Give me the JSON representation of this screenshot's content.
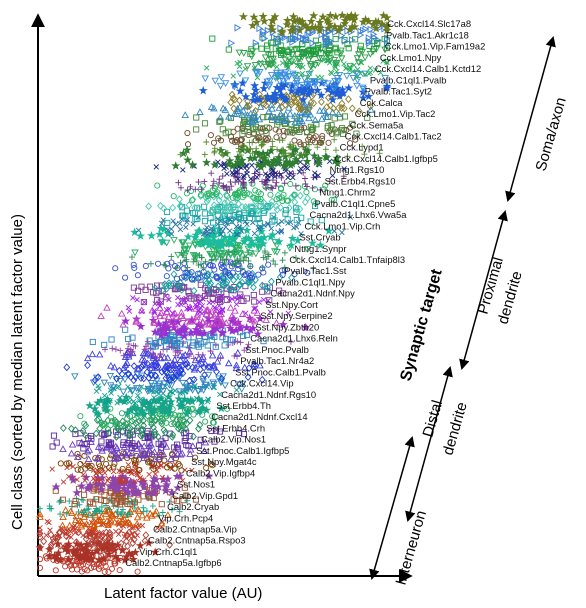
{
  "chart_data": {
    "type": "scatter",
    "xlabel": "Latent factor value (AU)",
    "ylabel": "Cell class (sorted by median latent factor value)",
    "y_order": "bottom-to-top",
    "grid": false,
    "legend": "none",
    "classes": [
      {
        "name": "Calb2.Cntnap5a.Igfbp6",
        "median": 0.08,
        "spread": 0.05,
        "color": "#c0392b",
        "marker": "circle"
      },
      {
        "name": "Vip.Crh.C1ql1",
        "median": 0.1,
        "spread": 0.055,
        "color": "#a93226",
        "marker": "star"
      },
      {
        "name": "Calb2.Cntnap5a.Rspo3",
        "median": 0.11,
        "spread": 0.06,
        "color": "#b03a2e",
        "marker": "diamond"
      },
      {
        "name": "Calb2.Cntnap5a.Vip",
        "median": 0.12,
        "spread": 0.06,
        "color": "#c0392b",
        "marker": "x"
      },
      {
        "name": "Vip.Crh.Pcp4",
        "median": 0.13,
        "spread": 0.06,
        "color": "#d35400",
        "marker": "triangle-up"
      },
      {
        "name": "Calb2.Cryab",
        "median": 0.14,
        "spread": 0.065,
        "color": "#16a085",
        "marker": "plus"
      },
      {
        "name": "Calb2.Vip.Gpd1",
        "median": 0.15,
        "spread": 0.065,
        "color": "#a0522d",
        "marker": "square"
      },
      {
        "name": "Sst.Nos1",
        "median": 0.16,
        "spread": 0.065,
        "color": "#8e44ad",
        "marker": "star"
      },
      {
        "name": "Calb2.Vip.Igfbp4",
        "median": 0.17,
        "spread": 0.07,
        "color": "#c0392b",
        "marker": "x"
      },
      {
        "name": "Sst.Npy.Mgat4c",
        "median": 0.18,
        "spread": 0.07,
        "color": "#7b3f00",
        "marker": "circle"
      },
      {
        "name": "Sst.Pnoc.Calb1.Igfbp5",
        "median": 0.19,
        "spread": 0.07,
        "color": "#6c3fc4",
        "marker": "triangle-up"
      },
      {
        "name": "Calb2.Vip.Nos1",
        "median": 0.2,
        "spread": 0.07,
        "color": "#5b2ca0",
        "marker": "square"
      },
      {
        "name": "Sst.Erbb4.Crh",
        "median": 0.21,
        "spread": 0.07,
        "color": "#1f8a5b",
        "marker": "diamond"
      },
      {
        "name": "Cacna2d1.Ndnf.Cxcl14",
        "median": 0.22,
        "spread": 0.07,
        "color": "#27ae60",
        "marker": "circle"
      },
      {
        "name": "Sst.Erbb4.Th",
        "median": 0.23,
        "spread": 0.07,
        "color": "#17a589",
        "marker": "star"
      },
      {
        "name": "Cacna2d1.Ndnf.Rgs10",
        "median": 0.24,
        "spread": 0.07,
        "color": "#0e9f8e",
        "marker": "x"
      },
      {
        "name": "Cck.Cxcl14.Vip",
        "median": 0.25,
        "spread": 0.075,
        "color": "#2e86c1",
        "marker": "triangle-down"
      },
      {
        "name": "Sst.Pnoc.Calb1.Pvalb",
        "median": 0.26,
        "spread": 0.075,
        "color": "#1f3bd6",
        "marker": "diamond"
      },
      {
        "name": "Pvalb.Tac1.Nr4a2",
        "median": 0.27,
        "spread": 0.075,
        "color": "#3d3de0",
        "marker": "triangle-up"
      },
      {
        "name": "Sst.Pnoc.Pvalb",
        "median": 0.28,
        "spread": 0.075,
        "color": "#8e44ad",
        "marker": "plus"
      },
      {
        "name": "Cacna2d1.Lhx6.Reln",
        "median": 0.29,
        "spread": 0.075,
        "color": "#2e86c1",
        "marker": "square"
      },
      {
        "name": "Sst.Npy.Zbtb20",
        "median": 0.3,
        "spread": 0.075,
        "color": "#9b30d0",
        "marker": "star"
      },
      {
        "name": "Sst.Npy.Serpine2",
        "median": 0.31,
        "spread": 0.075,
        "color": "#c040c0",
        "marker": "triangle-up"
      },
      {
        "name": "Sst.Npy.Cort",
        "median": 0.32,
        "spread": 0.075,
        "color": "#a020f0",
        "marker": "x"
      },
      {
        "name": "Cacna2d1.Ndnf.Npy",
        "median": 0.33,
        "spread": 0.075,
        "color": "#7d3c98",
        "marker": "square"
      },
      {
        "name": "Pvalb.C1ql1.Npy",
        "median": 0.34,
        "spread": 0.075,
        "color": "#16a0a0",
        "marker": "diamond"
      },
      {
        "name": "Pvalb.Tac1.Sst",
        "median": 0.35,
        "spread": 0.08,
        "color": "#3050d0",
        "marker": "circle"
      },
      {
        "name": "Cck.Cxcl14.Calb1.Tnfaip8l3",
        "median": 0.36,
        "spread": 0.08,
        "color": "#2e8b57",
        "marker": "plus"
      },
      {
        "name": "Ntng1.Synpr",
        "median": 0.37,
        "spread": 0.08,
        "color": "#27ae60",
        "marker": "triangle-down"
      },
      {
        "name": "Sst.Cryab",
        "median": 0.38,
        "spread": 0.08,
        "color": "#1abc9c",
        "marker": "star"
      },
      {
        "name": "Cck.Lmo1.Vip.Crh",
        "median": 0.39,
        "spread": 0.08,
        "color": "#2471a3",
        "marker": "x"
      },
      {
        "name": "Cacna2d1.Lhx6.Vwa5a",
        "median": 0.4,
        "spread": 0.08,
        "color": "#17a5a5",
        "marker": "square"
      },
      {
        "name": "Pvalb.C1ql1.Cpne5",
        "median": 0.41,
        "spread": 0.08,
        "color": "#48c9b0",
        "marker": "diamond"
      },
      {
        "name": "Ntng1.Chrm2",
        "median": 0.42,
        "spread": 0.08,
        "color": "#28b463",
        "marker": "circle"
      },
      {
        "name": "Sst.Erbb4.Rgs10",
        "median": 0.43,
        "spread": 0.08,
        "color": "#6c3483",
        "marker": "plus"
      },
      {
        "name": "Ntng1.Rgs10",
        "median": 0.44,
        "spread": 0.08,
        "color": "#1a237e",
        "marker": "x"
      },
      {
        "name": "Cck.Cxcl14.Calb1.Igfbp5",
        "median": 0.45,
        "spread": 0.08,
        "color": "#2e7d32",
        "marker": "star"
      },
      {
        "name": "Cck.Lypd1",
        "median": 0.46,
        "spread": 0.08,
        "color": "#558b2f",
        "marker": "plus"
      },
      {
        "name": "Cck.Cxcl14.Calb1.Tac2",
        "median": 0.47,
        "spread": 0.08,
        "color": "#6d4c2f",
        "marker": "circle"
      },
      {
        "name": "Cck.Sema5a",
        "median": 0.48,
        "spread": 0.08,
        "color": "#4a8a3a",
        "marker": "square"
      },
      {
        "name": "Cck.Lmo1.Vip.Tac2",
        "median": 0.49,
        "spread": 0.08,
        "color": "#2e86c1",
        "marker": "triangle-up"
      },
      {
        "name": "Cck.Calca",
        "median": 0.5,
        "spread": 0.08,
        "color": "#8b7d2a",
        "marker": "diamond"
      },
      {
        "name": "Pvalb.Tac1.Syt2",
        "median": 0.51,
        "spread": 0.08,
        "color": "#1f5fd6",
        "marker": "star"
      },
      {
        "name": "Pvalb.C1ql1.Pvalb",
        "median": 0.52,
        "spread": 0.08,
        "color": "#3a8fe0",
        "marker": "triangle-down"
      },
      {
        "name": "Cck.Cxcl14.Calb1.Kctd12",
        "median": 0.53,
        "spread": 0.08,
        "color": "#27ae60",
        "marker": "x"
      },
      {
        "name": "Cck.Lmo1.Npy",
        "median": 0.54,
        "spread": 0.08,
        "color": "#2e9e4a",
        "marker": "triangle-down"
      },
      {
        "name": "Cck.Lmo1.Vip.Fam19a2",
        "median": 0.55,
        "spread": 0.08,
        "color": "#1e9e3a",
        "marker": "square"
      },
      {
        "name": "Pvalb.Tac1.Akr1c18",
        "median": 0.56,
        "spread": 0.075,
        "color": "#3a7fd6",
        "marker": "triangle-right"
      },
      {
        "name": "Cck.Cxcl14.Slc17a8",
        "median": 0.57,
        "spread": 0.07,
        "color": "#6b7a1f",
        "marker": "star"
      }
    ]
  },
  "annotations": {
    "synaptic_target": "Synaptic target",
    "soma_axon": "Soma/axon",
    "proximal_dendrite": [
      "Proximal",
      "dendrite"
    ],
    "distal_dendrite": [
      "Distal",
      "dendrite"
    ],
    "interneuron": "Interneuron"
  }
}
